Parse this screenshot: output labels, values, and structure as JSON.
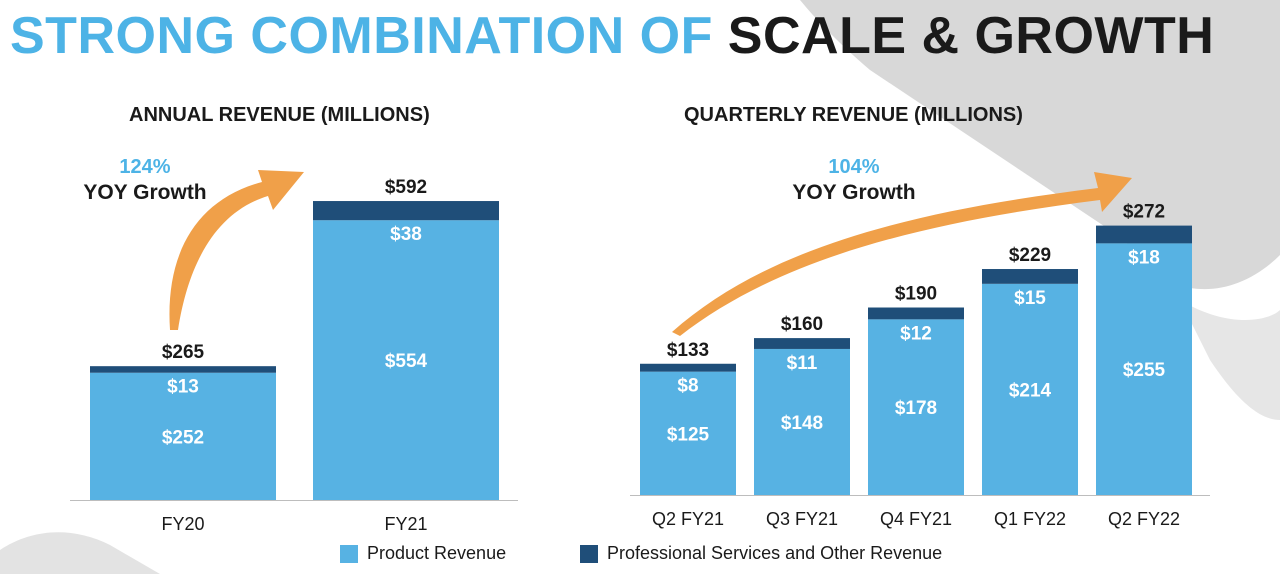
{
  "title": {
    "part1": "STRONG COMBINATION OF",
    "part2": "SCALE & GROWTH"
  },
  "colors": {
    "product": "#57b2e3",
    "services": "#1f4e79",
    "arrow": "#f0a049",
    "accent": "#4db3e6"
  },
  "annual": {
    "subtitle": "ANNUAL REVENUE (MILLIONS)",
    "growth_pct": "124%",
    "growth_label": "YOY Growth"
  },
  "quarterly": {
    "subtitle": "QUARTERLY REVENUE (MILLIONS)",
    "growth_pct": "104%",
    "growth_label": "YOY Growth"
  },
  "legend": {
    "product": "Product Revenue",
    "services": "Professional Services and Other Revenue"
  },
  "chart_data": [
    {
      "type": "bar",
      "stacked": true,
      "title": "ANNUAL REVENUE (MILLIONS)",
      "categories": [
        "FY20",
        "FY21"
      ],
      "series": [
        {
          "name": "Product Revenue",
          "values": [
            252,
            554
          ],
          "labels": [
            "$252",
            "$554"
          ]
        },
        {
          "name": "Professional Services and Other Revenue",
          "values": [
            13,
            38
          ],
          "labels": [
            "$13",
            "$38"
          ]
        }
      ],
      "totals": [
        265,
        592
      ],
      "total_labels": [
        "$265",
        "$592"
      ],
      "annotation": "124% YOY Growth",
      "ylim": [
        0,
        620
      ]
    },
    {
      "type": "bar",
      "stacked": true,
      "title": "QUARTERLY REVENUE (MILLIONS)",
      "categories": [
        "Q2 FY21",
        "Q3 FY21",
        "Q4 FY21",
        "Q1 FY22",
        "Q2 FY22"
      ],
      "series": [
        {
          "name": "Product Revenue",
          "values": [
            125,
            148,
            178,
            214,
            255
          ],
          "labels": [
            "$125",
            "$148",
            "$178",
            "$214",
            "$255"
          ]
        },
        {
          "name": "Professional Services and Other Revenue",
          "values": [
            8,
            11,
            12,
            15,
            18
          ],
          "labels": [
            "$8",
            "$11",
            "$12",
            "$15",
            "$18"
          ]
        }
      ],
      "totals": [
        133,
        160,
        190,
        229,
        272
      ],
      "total_labels": [
        "$133",
        "$160",
        "$190",
        "$229",
        "$272"
      ],
      "annotation": "104% YOY Growth",
      "ylim": [
        0,
        300
      ]
    }
  ]
}
